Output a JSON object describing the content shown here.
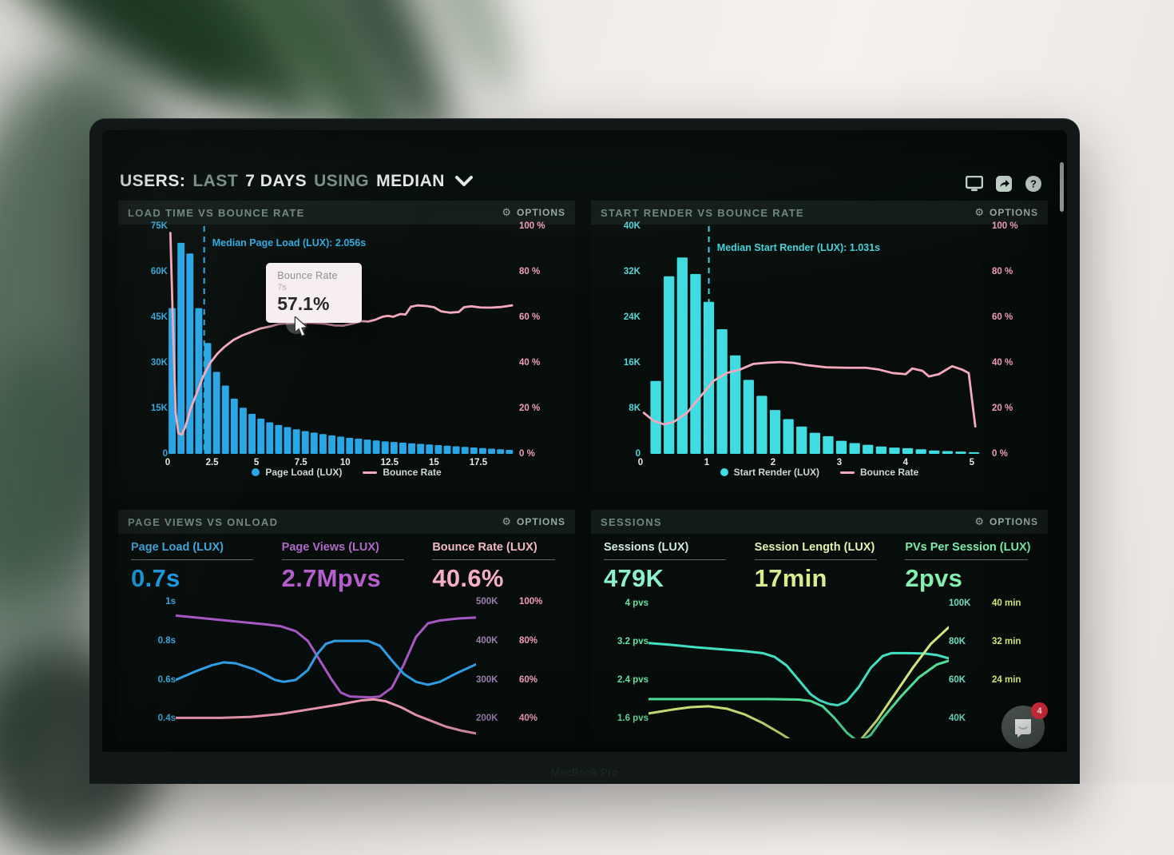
{
  "ui": {
    "header": {
      "part1": "USERS:",
      "part2": "LAST",
      "part3": "7 DAYS",
      "part4": "USING",
      "part5": "MEDIAN"
    },
    "options_label": "OPTIONS",
    "device_label": "MacBook Pro",
    "chat_badge": "4",
    "glyphs": {
      "gear": "⚙",
      "question": "?"
    },
    "colors": {
      "accent_blue": "#2ea9e3",
      "accent_cyan": "#41d8df",
      "accent_pink": "#f2a4ba",
      "accent_purple": "#a757c4",
      "accent_teal": "#43dfc3",
      "accent_green": "#52e39b",
      "accent_yellow": "#cfe97a",
      "badge_red": "#e62e40"
    }
  },
  "chart_data": [
    {
      "id": "loadtime",
      "type": "histogram+line",
      "title": "LOAD TIME VS BOUNCE RATE",
      "x_unit": "seconds",
      "xlim": [
        0,
        19.8
      ],
      "x_ticks": [
        "0",
        "2.5",
        "5",
        "7.5",
        "10",
        "12.5",
        "15",
        "17.5"
      ],
      "ylim_left": [
        0,
        75
      ],
      "y_left_ticks": [
        "75K",
        "60K",
        "45K",
        "30K",
        "15K",
        "0"
      ],
      "y_left_color": "#3aa9dd",
      "ylim": [
        0,
        100
      ],
      "y_right_ticks": [
        "100 %",
        "80 %",
        "60 %",
        "40 %",
        "20 %",
        "0 %"
      ],
      "y_right_color": "#f29fb6",
      "bars": {
        "name": "Page Load (LUX)",
        "color": "#2aa6e6",
        "unit": "K sessions",
        "bin_start": 0.05,
        "bin_width": 0.5,
        "values": [
          48,
          69.5,
          66,
          48,
          36.5,
          27,
          22.5,
          18.2,
          15.2,
          13.2,
          11.6,
          10.4,
          9.5,
          8.8,
          8.1,
          7.5,
          7,
          6.5,
          6.1,
          5.7,
          5.3,
          5,
          4.7,
          4.4,
          4.1,
          3.9,
          3.7,
          3.5,
          3.3,
          3.1,
          2.9,
          2.7,
          2.5,
          2.3,
          2.1,
          1.9,
          1.7,
          1.5,
          1.3
        ]
      },
      "line": {
        "name": "Bounce Rate",
        "color": "#f4aabc",
        "unit": "%",
        "points": [
          [
            0.15,
            97
          ],
          [
            0.3,
            55
          ],
          [
            0.45,
            18
          ],
          [
            0.6,
            9
          ],
          [
            0.8,
            8.5
          ],
          [
            1.0,
            12
          ],
          [
            1.3,
            20
          ],
          [
            1.7,
            28
          ],
          [
            2.0,
            34
          ],
          [
            2.4,
            40
          ],
          [
            2.8,
            44
          ],
          [
            3.2,
            47
          ],
          [
            3.7,
            50
          ],
          [
            4.2,
            52
          ],
          [
            4.7,
            53.5
          ],
          [
            5.2,
            55
          ],
          [
            5.8,
            56
          ],
          [
            6.3,
            57.1
          ],
          [
            7.0,
            57.4
          ],
          [
            7.6,
            57.6
          ],
          [
            8.2,
            57.5
          ],
          [
            8.8,
            57.2
          ],
          [
            9.4,
            56.4
          ],
          [
            9.9,
            56.3
          ],
          [
            10.4,
            57.2
          ],
          [
            10.9,
            58.3
          ],
          [
            11.3,
            58.1
          ],
          [
            11.7,
            58.9
          ],
          [
            12.1,
            60.2
          ],
          [
            12.4,
            60.6
          ],
          [
            12.7,
            60.2
          ],
          [
            13.1,
            61.4
          ],
          [
            13.4,
            61.2
          ],
          [
            13.7,
            64.6
          ],
          [
            14.1,
            65.2
          ],
          [
            14.6,
            64.9
          ],
          [
            15.0,
            64.4
          ],
          [
            15.4,
            62.6
          ],
          [
            15.9,
            62.0
          ],
          [
            16.4,
            62.3
          ],
          [
            16.7,
            64.4
          ],
          [
            17.1,
            64.8
          ],
          [
            17.6,
            64.3
          ],
          [
            18.2,
            64.2
          ],
          [
            18.8,
            64.5
          ],
          [
            19.4,
            65.2
          ]
        ]
      },
      "median_annotation": {
        "label": "Median Page Load (LUX): 2.056s",
        "x": 2.056,
        "color": "#2fa9e0"
      },
      "tooltip": {
        "title": "Bounce Rate",
        "x_value": "7s",
        "value": "57.1%"
      }
    },
    {
      "id": "startrender",
      "type": "histogram+line",
      "title": "START RENDER VS BOUNCE RATE",
      "x_unit": "seconds",
      "xlim": [
        0,
        5.3
      ],
      "x_ticks": [
        "0",
        "1",
        "2",
        "3",
        "4",
        "5"
      ],
      "ylim_left": [
        0,
        40
      ],
      "y_left_ticks": [
        "40K",
        "32K",
        "24K",
        "16K",
        "8K",
        "0"
      ],
      "y_left_color": "#56d6d9",
      "ylim": [
        0,
        100
      ],
      "y_right_ticks": [
        "100 %",
        "80 %",
        "60 %",
        "40 %",
        "20 %",
        "0 %"
      ],
      "y_right_color": "#f29fb6",
      "bars": {
        "name": "Start Render (LUX)",
        "color": "#3fdce2",
        "unit": "K sessions",
        "bin_start": 0.15,
        "bin_width": 0.2,
        "values": [
          12.8,
          31.2,
          34.5,
          31.6,
          26.7,
          21.9,
          17.3,
          13,
          10.2,
          7.7,
          6.1,
          4.8,
          3.7,
          3.1,
          2.3,
          1.9,
          1.6,
          1.3,
          1.1,
          1,
          0.8,
          0.6,
          0.5,
          0.4,
          0.3
        ]
      },
      "line": {
        "name": "Bounce Rate",
        "color": "#f4aabc",
        "unit": "%",
        "points": [
          [
            0.05,
            18
          ],
          [
            0.2,
            14.5
          ],
          [
            0.35,
            13
          ],
          [
            0.5,
            14
          ],
          [
            0.7,
            18
          ],
          [
            0.9,
            25
          ],
          [
            1.1,
            32
          ],
          [
            1.3,
            35.5
          ],
          [
            1.5,
            37
          ],
          [
            1.7,
            39.5
          ],
          [
            1.9,
            40
          ],
          [
            2.1,
            40.3
          ],
          [
            2.3,
            40
          ],
          [
            2.5,
            39
          ],
          [
            2.8,
            38
          ],
          [
            3.1,
            37.8
          ],
          [
            3.4,
            37.8
          ],
          [
            3.6,
            37
          ],
          [
            3.8,
            35.5
          ],
          [
            4.0,
            35
          ],
          [
            4.1,
            37.5
          ],
          [
            4.25,
            36.5
          ],
          [
            4.35,
            34
          ],
          [
            4.5,
            35
          ],
          [
            4.7,
            38.5
          ],
          [
            4.85,
            37
          ],
          [
            4.95,
            35.5
          ],
          [
            5.05,
            12
          ]
        ]
      },
      "median_annotation": {
        "label": "Median Start Render (LUX): 1.031s",
        "x": 1.031,
        "color": "#44d2da"
      }
    },
    {
      "id": "pageviews",
      "type": "line",
      "title": "PAGE VIEWS VS ONLOAD",
      "metrics": [
        {
          "label": "Page Load (LUX)",
          "value": "0.7s",
          "label_color": "#3fa6db",
          "value_color": "#1e9be0"
        },
        {
          "label": "Page Views (LUX)",
          "value": "2.7Mpvs",
          "label_color": "#b168c9",
          "value_color": "#b55ecc"
        },
        {
          "label": "Bounce Rate (LUX)",
          "value": "40.6%",
          "label_color": "#f3b9c6",
          "value_color": "#f6aec3"
        }
      ],
      "xlim": [
        0,
        100
      ],
      "ylim": [
        0.3,
        1.03
      ],
      "y_left_ticks": [
        "1s",
        "0.8s",
        "0.6s",
        "0.4s"
      ],
      "y_left_color": "#3aa9dd",
      "y_right_ticks_k": [
        "500K",
        "400K",
        "300K",
        "200K"
      ],
      "y_right_k_color": "#9c7fb0",
      "y_right_ticks_pct": [
        "100%",
        "80%",
        "60%",
        "40%"
      ],
      "y_right_pct_color": "#f29fb6",
      "lines": [
        {
          "name": "Page Views (LUX)",
          "color": "#a757c4",
          "points": [
            [
              0,
              0.93
            ],
            [
              10,
              0.915
            ],
            [
              20,
              0.9
            ],
            [
              30,
              0.885
            ],
            [
              35,
              0.875
            ],
            [
              40,
              0.85
            ],
            [
              44,
              0.8
            ],
            [
              48,
              0.7
            ],
            [
              52,
              0.6
            ],
            [
              55,
              0.535
            ],
            [
              58,
              0.515
            ],
            [
              65,
              0.51
            ],
            [
              68,
              0.515
            ],
            [
              72,
              0.56
            ],
            [
              76,
              0.68
            ],
            [
              80,
              0.82
            ],
            [
              84,
              0.89
            ],
            [
              88,
              0.905
            ],
            [
              94,
              0.915
            ],
            [
              100,
              0.92
            ]
          ]
        },
        {
          "name": "Page Load (LUX)",
          "color": "#2e9fe6",
          "points": [
            [
              0,
              0.6
            ],
            [
              6,
              0.64
            ],
            [
              12,
              0.675
            ],
            [
              16,
              0.69
            ],
            [
              20,
              0.685
            ],
            [
              26,
              0.655
            ],
            [
              30,
              0.625
            ],
            [
              33,
              0.6
            ],
            [
              36,
              0.59
            ],
            [
              40,
              0.6
            ],
            [
              44,
              0.65
            ],
            [
              47,
              0.73
            ],
            [
              50,
              0.785
            ],
            [
              53,
              0.8
            ],
            [
              60,
              0.8
            ],
            [
              64,
              0.8
            ],
            [
              68,
              0.775
            ],
            [
              72,
              0.7
            ],
            [
              76,
              0.63
            ],
            [
              80,
              0.59
            ],
            [
              84,
              0.575
            ],
            [
              88,
              0.59
            ],
            [
              93,
              0.63
            ],
            [
              100,
              0.68
            ]
          ]
        },
        {
          "name": "Bounce Rate (LUX)",
          "color": "#f29db4",
          "points": [
            [
              0,
              0.405
            ],
            [
              15,
              0.405
            ],
            [
              25,
              0.41
            ],
            [
              35,
              0.425
            ],
            [
              45,
              0.45
            ],
            [
              55,
              0.475
            ],
            [
              62,
              0.495
            ],
            [
              66,
              0.5
            ],
            [
              70,
              0.49
            ],
            [
              75,
              0.46
            ],
            [
              80,
              0.42
            ],
            [
              85,
              0.39
            ],
            [
              90,
              0.36
            ],
            [
              95,
              0.34
            ],
            [
              100,
              0.325
            ]
          ]
        }
      ]
    },
    {
      "id": "sessions",
      "type": "line",
      "title": "SESSIONS",
      "metrics": [
        {
          "label": "Sessions (LUX)",
          "value": "479K",
          "label_color": "#cfeadd",
          "value_color": "#8df0cf"
        },
        {
          "label": "Session Length (LUX)",
          "value": "17min",
          "label_color": "#e4f2b0",
          "value_color": "#d8ee8e"
        },
        {
          "label": "PVs Per Session (LUX)",
          "value": "2pvs",
          "label_color": "#7debaa",
          "value_color": "#84efae"
        }
      ],
      "xlim": [
        0,
        100
      ],
      "ylim": [
        1.18,
        4.15
      ],
      "y_left_ticks": [
        "4 pvs",
        "3.2 pvs",
        "2.4 pvs",
        "1.6 pvs"
      ],
      "y_left_color": "#66e2a2",
      "y_right_ticks_k": [
        "100K",
        "80K",
        "60K",
        "40K"
      ],
      "y_right_k_color": "#72dcc6",
      "y_right_ticks_min": [
        "40 min",
        "32 min",
        "24 min",
        ""
      ],
      "y_right_min_color": "#cfe97a",
      "lines": [
        {
          "name": "Sessions (LUX)",
          "color": "#43dfc3",
          "points": [
            [
              0,
              3.17
            ],
            [
              8,
              3.13
            ],
            [
              16,
              3.08
            ],
            [
              24,
              3.04
            ],
            [
              32,
              3.0
            ],
            [
              38,
              2.96
            ],
            [
              42,
              2.88
            ],
            [
              46,
              2.7
            ],
            [
              50,
              2.4
            ],
            [
              54,
              2.1
            ],
            [
              57,
              1.97
            ],
            [
              60,
              1.9
            ],
            [
              63,
              1.87
            ],
            [
              66,
              1.95
            ],
            [
              70,
              2.25
            ],
            [
              74,
              2.65
            ],
            [
              78,
              2.9
            ],
            [
              81,
              2.96
            ],
            [
              86,
              2.96
            ],
            [
              92,
              2.95
            ],
            [
              96,
              2.92
            ],
            [
              100,
              2.85
            ]
          ]
        },
        {
          "name": "PVs Per Session (LUX)",
          "color": "#52e39b",
          "points": [
            [
              0,
              2.0
            ],
            [
              20,
              2.0
            ],
            [
              40,
              2.0
            ],
            [
              50,
              1.99
            ],
            [
              54,
              1.96
            ],
            [
              58,
              1.85
            ],
            [
              62,
              1.6
            ],
            [
              66,
              1.3
            ],
            [
              70,
              1.1
            ],
            [
              74,
              1.25
            ],
            [
              78,
              1.6
            ],
            [
              84,
              2.05
            ],
            [
              90,
              2.45
            ],
            [
              96,
              2.72
            ],
            [
              100,
              2.8
            ]
          ]
        },
        {
          "name": "Session Length (LUX)",
          "color": "#cfe97a",
          "points": [
            [
              0,
              1.7
            ],
            [
              8,
              1.78
            ],
            [
              14,
              1.83
            ],
            [
              20,
              1.85
            ],
            [
              26,
              1.8
            ],
            [
              32,
              1.68
            ],
            [
              38,
              1.5
            ],
            [
              44,
              1.28
            ],
            [
              48,
              1.12
            ],
            [
              52,
              1.02
            ],
            [
              58,
              0.95
            ],
            [
              64,
              0.95
            ],
            [
              70,
              1.1
            ],
            [
              76,
              1.55
            ],
            [
              82,
              2.1
            ],
            [
              88,
              2.65
            ],
            [
              94,
              3.15
            ],
            [
              100,
              3.5
            ]
          ]
        }
      ]
    }
  ]
}
